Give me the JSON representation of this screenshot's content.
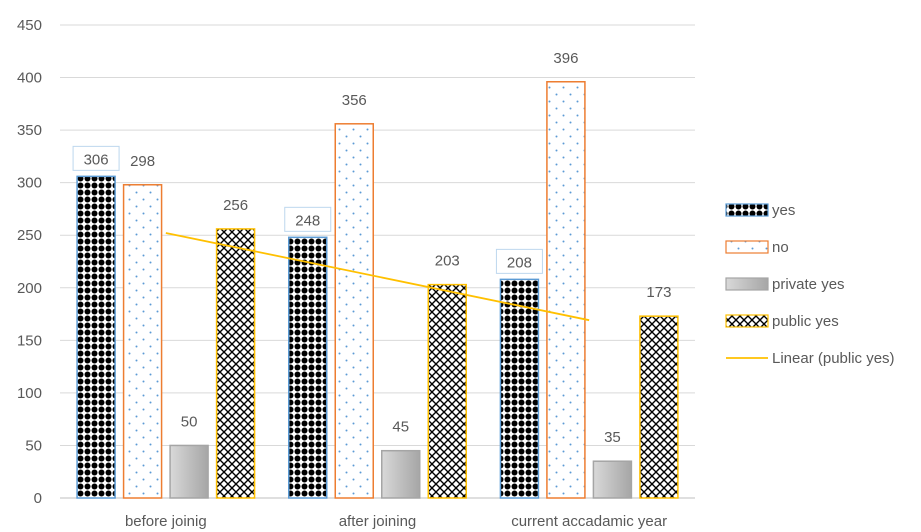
{
  "chart_data": {
    "type": "bar",
    "categories": [
      "before joinig",
      "after joining",
      "current accadamic year"
    ],
    "series": [
      {
        "name": "yes",
        "values": [
          306,
          248,
          208
        ],
        "color": "#000000",
        "border": "#5b9bd5",
        "pattern": "dots-black"
      },
      {
        "name": "no",
        "values": [
          298,
          356,
          396
        ],
        "color": "#ed7d31",
        "border": "#ed7d31",
        "pattern": "dots-light"
      },
      {
        "name": "private yes",
        "values": [
          50,
          45,
          35
        ],
        "color": "#bfbfbf",
        "border": "#a5a5a5",
        "pattern": "gray-gradient"
      },
      {
        "name": "public yes",
        "values": [
          256,
          203,
          173
        ],
        "color": "#000000",
        "border": "#ffc000",
        "pattern": "crosshatch"
      }
    ],
    "trendline": {
      "name": "Linear (public yes)",
      "of_series": "public yes",
      "color": "#ffc000"
    },
    "y_ticks": [
      0,
      50,
      100,
      150,
      200,
      250,
      300,
      350,
      400,
      450
    ],
    "ylim": [
      0,
      450
    ],
    "grid": true,
    "legend_position": "right",
    "title": "",
    "xlabel": "",
    "ylabel": ""
  }
}
